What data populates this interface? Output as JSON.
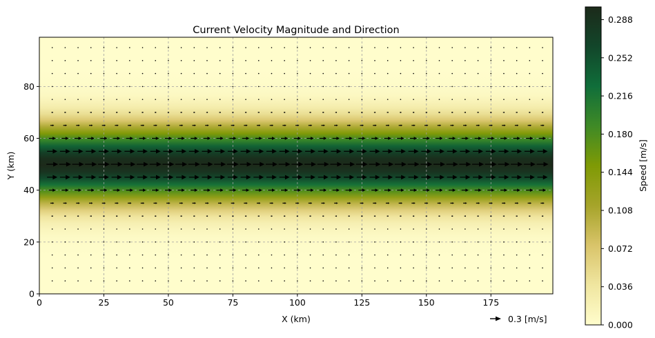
{
  "chart_data": {
    "type": "heatmap",
    "title": "Current Velocity Magnitude and Direction",
    "xlabel": "X (km)",
    "ylabel": "Y (km)",
    "xlim": [
      0,
      199
    ],
    "ylim": [
      0,
      99
    ],
    "x_ticks": [
      0,
      25,
      50,
      75,
      100,
      125,
      150,
      175
    ],
    "y_ticks": [
      0,
      20,
      40,
      60,
      80
    ],
    "grid": true,
    "field": {
      "component": "u (eastward)",
      "profile": "gaussian jet in y",
      "peak_speed": 0.3,
      "center_y": 50,
      "sigma_y": 10
    },
    "quiver": {
      "x": [
        5,
        10,
        15,
        20,
        25,
        30,
        35,
        40,
        45,
        50,
        55,
        60,
        65,
        70,
        75,
        80,
        85,
        90,
        95,
        100,
        105,
        110,
        115,
        120,
        125,
        130,
        135,
        140,
        145,
        150,
        155,
        160,
        165,
        170,
        175,
        180,
        185,
        190,
        195
      ],
      "y": [
        5,
        10,
        15,
        20,
        25,
        30,
        35,
        40,
        45,
        50,
        55,
        60,
        65,
        70,
        75,
        80,
        85,
        90,
        95
      ],
      "key_value": 0.3,
      "key_label": "0.3 [m/s]"
    },
    "colorbar": {
      "label": "Speed [m/s]",
      "range": [
        0,
        0.3
      ],
      "ticks": [
        "0.000",
        "0.036",
        "0.072",
        "0.108",
        "0.144",
        "0.180",
        "0.216",
        "0.252",
        "0.288"
      ],
      "tick_values": [
        0,
        0.036,
        0.072,
        0.108,
        0.144,
        0.18,
        0.216,
        0.252,
        0.288
      ],
      "colormap": [
        "#fffdcc",
        "#f0e6a0",
        "#d9c46a",
        "#a6a42a",
        "#7f9a05",
        "#3f8a26",
        "#106e3a",
        "#12462a",
        "#1c2a1a"
      ]
    }
  }
}
